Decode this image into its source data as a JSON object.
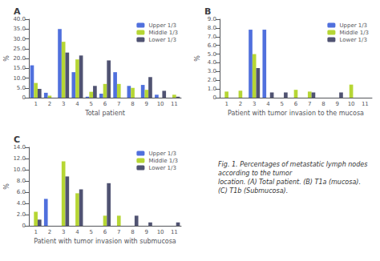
{
  "chart_data": [
    {
      "type": "bar",
      "title": "A",
      "xlabel": "Total patient",
      "ylabel": "%",
      "categories": [
        1,
        2,
        3,
        4,
        5,
        6,
        7,
        8,
        9,
        10,
        11
      ],
      "series": [
        {
          "name": "Upper 1/3",
          "values": [
            16.5,
            2.5,
            35.0,
            13.0,
            0.5,
            2.0,
            13.0,
            6.0,
            6.5,
            1.5,
            0
          ]
        },
        {
          "name": "Middle 1/3",
          "values": [
            7.5,
            1.0,
            28.5,
            19.5,
            3.0,
            7.0,
            7.0,
            5.0,
            4.0,
            0,
            1.5
          ]
        },
        {
          "name": "Lower 1/3",
          "values": [
            4.5,
            0,
            23.0,
            21.5,
            6.0,
            19.0,
            0,
            0,
            10.5,
            3.5,
            0.5
          ]
        }
      ],
      "ylim": [
        0,
        40
      ],
      "yticks": [
        0,
        {
          "value": 5,
          "label": "5.0"
        },
        {
          "value": 10,
          "label": "10.0"
        },
        {
          "value": 15,
          "label": "15.0"
        },
        {
          "value": 20,
          "label": "20.0"
        },
        {
          "value": 25,
          "label": "25.0"
        },
        {
          "value": 30,
          "label": "30.0"
        },
        {
          "value": 35,
          "label": "35.0"
        },
        {
          "value": 40,
          "label": "40.0"
        }
      ],
      "grid": false,
      "legend": "upper right"
    },
    {
      "type": "bar",
      "title": "B",
      "xlabel": "Patient with tumor invasion to the mucosa",
      "ylabel": "%",
      "categories": [
        1,
        2,
        3,
        4,
        5,
        6,
        7,
        8,
        9,
        10,
        11
      ],
      "series": [
        {
          "name": "Upper 1/3",
          "values": [
            0,
            0,
            7.8,
            7.8,
            0,
            0,
            0,
            0,
            0,
            0,
            0
          ]
        },
        {
          "name": "Middle 1/3",
          "values": [
            0.7,
            0.8,
            5.0,
            0,
            0,
            0.9,
            0.7,
            0,
            0,
            1.5,
            0
          ]
        },
        {
          "name": "Lower 1/3",
          "values": [
            0,
            0,
            3.4,
            0.6,
            0.6,
            0,
            0.6,
            0,
            0.6,
            0,
            0
          ]
        }
      ],
      "ylim": [
        0,
        9
      ],
      "yticks": [
        0,
        {
          "value": 1,
          "label": "1.0"
        },
        {
          "value": 2,
          "label": "2.0"
        },
        {
          "value": 3,
          "label": "3.0"
        },
        {
          "value": 4,
          "label": "4.0"
        },
        {
          "value": 5,
          "label": "5.0"
        },
        {
          "value": 6,
          "label": "6.0"
        },
        {
          "value": 7,
          "label": "7.0"
        },
        {
          "value": 8,
          "label": "8.0"
        },
        {
          "value": 9,
          "label": "9.0"
        }
      ],
      "grid": false,
      "legend": "upper right"
    },
    {
      "type": "bar",
      "title": "C",
      "xlabel": "Patient with tumor invasion with submucosa",
      "ylabel": "%",
      "categories": [
        1,
        2,
        3,
        4,
        5,
        6,
        7,
        8,
        9,
        10,
        11
      ],
      "series": [
        {
          "name": "Upper 1/3",
          "values": [
            0,
            4.8,
            0,
            0,
            0,
            0,
            0,
            0,
            0,
            0,
            0
          ]
        },
        {
          "name": "Middle 1/3",
          "values": [
            2.5,
            0,
            11.5,
            5.8,
            0,
            1.8,
            1.8,
            0,
            0,
            0,
            0
          ]
        },
        {
          "name": "Lower 1/3",
          "values": [
            1.1,
            0,
            8.8,
            6.5,
            0,
            7.6,
            0,
            1.8,
            0.6,
            0,
            0.6
          ]
        }
      ],
      "ylim": [
        0,
        14
      ],
      "yticks": [
        0,
        {
          "value": 2,
          "label": "2.0"
        },
        {
          "value": 4,
          "label": "4.0"
        },
        {
          "value": 6,
          "label": "6.0"
        },
        {
          "value": 8,
          "label": "8.0"
        },
        {
          "value": 10,
          "label": "10.0"
        },
        {
          "value": 12,
          "label": "12.0"
        },
        {
          "value": 14,
          "label": "14.0"
        }
      ],
      "grid": false,
      "legend": "upper right",
      "annotations": [
        "Fig. 1. Percentages of metastatic lymph nodes according to the tumor",
        "location. (A) Total patient. (B) T1a (mucosa). (C) T1b (Submucosa)."
      ]
    }
  ]
}
